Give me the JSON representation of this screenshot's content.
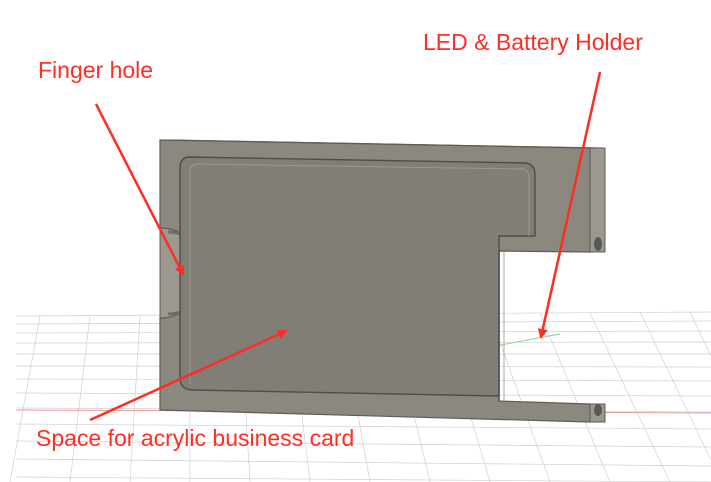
{
  "annotations": {
    "finger_hole": "Finger hole",
    "led_holder": "LED & Battery Holder",
    "card_space": "Space for acrylic business card"
  },
  "colors": {
    "annotation": "#ff2e23",
    "part_face": "#8a887f",
    "part_edge": "#6f6d66",
    "grid": "#c8c8c8"
  },
  "icons": {
    "arrow": "arrow-icon"
  }
}
